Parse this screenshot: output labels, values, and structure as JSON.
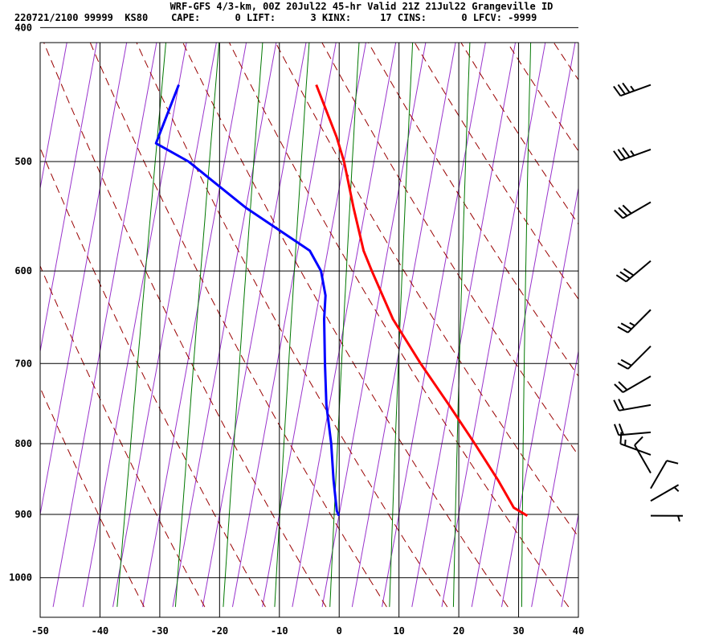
{
  "header": {
    "title": "WRF-GFS 4/3-km, 00Z 20Jul22 45-hr Valid 21Z 21Jul22 Grangeville ID",
    "stats": [
      {
        "label": "220721/2100 99999  KS80",
        "value": ""
      },
      {
        "label": "CAPE:",
        "value": "0"
      },
      {
        "label": "LIFT:",
        "value": "3"
      },
      {
        "label": "KINX:",
        "value": "17"
      },
      {
        "label": "CINS:",
        "value": "0"
      },
      {
        "label": "LFCV:",
        "value": "-9999"
      }
    ]
  },
  "chart_data": {
    "type": "line",
    "x_axis": {
      "ticks": [
        "-50",
        "-40",
        "-30",
        "-20",
        "-10",
        "0",
        "10",
        "20",
        "30",
        "40"
      ],
      "range": [
        -50,
        40
      ]
    },
    "y_axis": {
      "ticks": [
        "400",
        "500",
        "600",
        "700",
        "800",
        "900",
        "1000"
      ],
      "range": [
        400,
        1050
      ],
      "scale": "log-pressure"
    },
    "skew": "skew-T",
    "colors": {
      "temperature": "#ff0000",
      "dewpoint": "#0000ff",
      "isotherm": "#9933cc",
      "dry_adiabat": "#990000",
      "mixing_ratio": "#007700",
      "grid": "#000000"
    },
    "series": [
      {
        "points": [
          {
            "p": 902,
            "t": 31.5
          },
          {
            "p": 890,
            "t": 29.0
          },
          {
            "p": 850,
            "t": 25.5
          },
          {
            "p": 800,
            "t": 20.5
          },
          {
            "p": 750,
            "t": 15.0
          },
          {
            "p": 700,
            "t": 9.0
          },
          {
            "p": 650,
            "t": 3.0
          },
          {
            "p": 600,
            "t": -2.0
          },
          {
            "p": 580,
            "t": -4.0
          },
          {
            "p": 540,
            "t": -7.0
          },
          {
            "p": 500,
            "t": -10.0
          },
          {
            "p": 480,
            "t": -12.0
          },
          {
            "p": 440,
            "t": -17.0
          }
        ]
      },
      {
        "points": [
          {
            "p": 902,
            "t": 0.0
          },
          {
            "p": 895,
            "t": -0.5
          },
          {
            "p": 850,
            "t": -2.0
          },
          {
            "p": 800,
            "t": -3.5
          },
          {
            "p": 750,
            "t": -5.5
          },
          {
            "p": 700,
            "t": -7.0
          },
          {
            "p": 650,
            "t": -8.5
          },
          {
            "p": 625,
            "t": -9.0
          },
          {
            "p": 600,
            "t": -10.5
          },
          {
            "p": 580,
            "t": -13.0
          },
          {
            "p": 540,
            "t": -25.0
          },
          {
            "p": 500,
            "t": -36.0
          },
          {
            "p": 485,
            "t": -42.0
          },
          {
            "p": 440,
            "t": -40.0
          }
        ]
      }
    ],
    "wind_barbs": [
      {
        "p": 440,
        "dir": 250,
        "speed": 35
      },
      {
        "p": 490,
        "dir": 250,
        "speed": 35
      },
      {
        "p": 535,
        "dir": 240,
        "speed": 30
      },
      {
        "p": 590,
        "dir": 230,
        "speed": 30
      },
      {
        "p": 640,
        "dir": 225,
        "speed": 25
      },
      {
        "p": 680,
        "dir": 225,
        "speed": 20
      },
      {
        "p": 715,
        "dir": 240,
        "speed": 20
      },
      {
        "p": 750,
        "dir": 260,
        "speed": 20
      },
      {
        "p": 785,
        "dir": 265,
        "speed": 20
      },
      {
        "p": 815,
        "dir": 290,
        "speed": 15
      },
      {
        "p": 840,
        "dir": 330,
        "speed": 10
      },
      {
        "p": 862,
        "dir": 30,
        "speed": 10
      },
      {
        "p": 880,
        "dir": 60,
        "speed": 5
      },
      {
        "p": 902,
        "dir": 90,
        "speed": 5
      }
    ]
  }
}
